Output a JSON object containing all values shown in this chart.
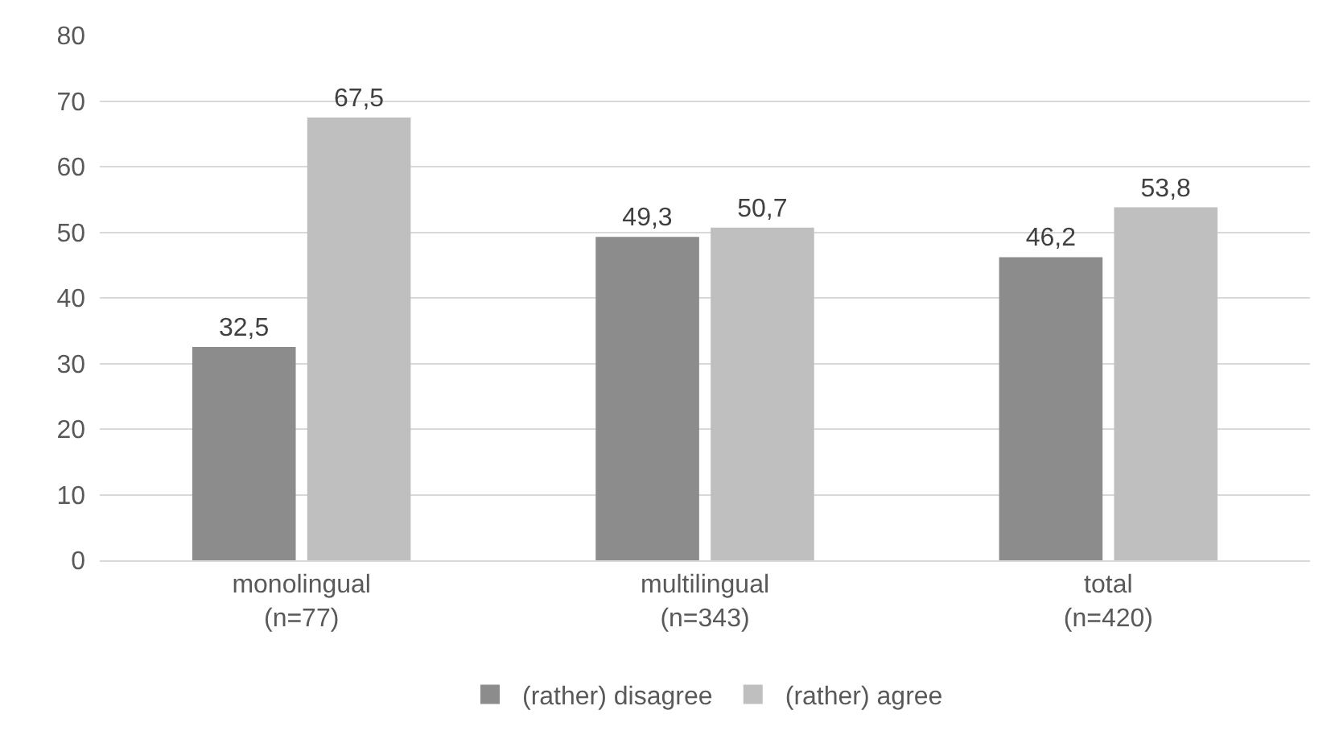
{
  "chart_data": {
    "type": "bar",
    "categories": [
      "monolingual\n(n=77)",
      "multilingual\n(n=343)",
      "total\n(n=420)"
    ],
    "series": [
      {
        "name": "(rather) disagree",
        "color": "#8c8c8c",
        "values": [
          32.5,
          49.3,
          46.2
        ],
        "value_labels": [
          "32,5",
          "49,3",
          "46,2"
        ]
      },
      {
        "name": "(rather) agree",
        "color": "#bfbfbf",
        "values": [
          67.5,
          50.7,
          53.8
        ],
        "value_labels": [
          "67,5",
          "50,7",
          "53,8"
        ]
      }
    ],
    "ylim": [
      0,
      80
    ],
    "yticks": [
      0,
      10,
      20,
      30,
      40,
      50,
      60,
      70,
      80
    ],
    "grid": "y",
    "legend": "bottom"
  }
}
